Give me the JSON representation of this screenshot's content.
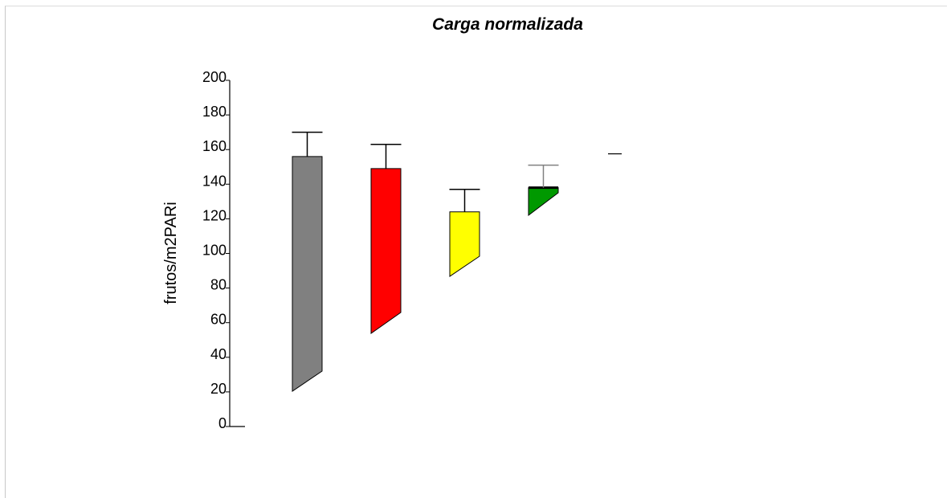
{
  "chart_data": {
    "type": "bar",
    "title": "Carga normalizada",
    "xlabel": "",
    "ylabel": "frutos/m2PARi",
    "ylim": [
      0,
      200
    ],
    "yticks": [
      "0",
      "20",
      "40",
      "60",
      "80",
      "100",
      "120",
      "140",
      "160",
      "180",
      "200"
    ],
    "grid": false,
    "legend": "none",
    "series": [
      {
        "values": [
          156,
          149,
          124,
          138,
          158
        ],
        "errors": [
          14,
          14,
          13,
          13,
          0
        ],
        "colors": [
          "#808080",
          "#ff0000",
          "#ffff00",
          "#009900",
          "#808080"
        ],
        "error_colors": [
          "#000000",
          "#000000",
          "#000000",
          "#808080",
          "#000000"
        ]
      }
    ]
  }
}
